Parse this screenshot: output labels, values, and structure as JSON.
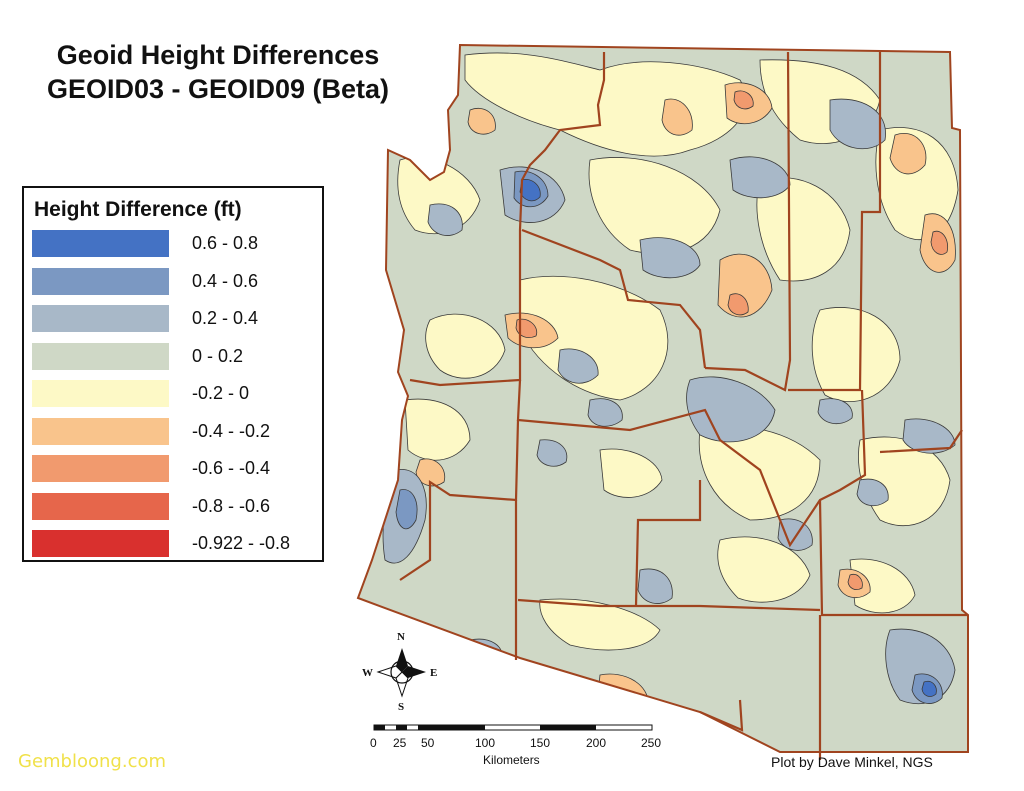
{
  "map": {
    "title_line1": "Geoid Height Differences",
    "title_line2": "GEOID03 - GEOID09 (Beta)",
    "legend": {
      "title": "Height Difference (ft)",
      "classes": [
        {
          "label": "0.6 - 0.8",
          "color": "#4472c4"
        },
        {
          "label": "0.4 - 0.6",
          "color": "#7b98c2"
        },
        {
          "label": "0.2 - 0.4",
          "color": "#a8b8c8"
        },
        {
          "label": "0 - 0.2",
          "color": "#cfd8c6"
        },
        {
          "label": "-0.2 - 0",
          "color": "#fdf9c6"
        },
        {
          "label": "-0.4 - -0.2",
          "color": "#f9c48c"
        },
        {
          "label": "-0.6 - -0.4",
          "color": "#f19a6e"
        },
        {
          "label": "-0.8 - -0.6",
          "color": "#e6664b"
        },
        {
          "label": "-0.922 - -0.8",
          "color": "#d9302e"
        }
      ]
    },
    "north_arrow": {
      "n": "N",
      "s": "S",
      "e": "E",
      "w": "W"
    },
    "scale_bar": {
      "ticks": [
        "0",
        "25",
        "50",
        "100",
        "150",
        "200",
        "250"
      ],
      "units": "Kilometers"
    },
    "credit": "Plot by Dave Minkel, NGS",
    "watermark": "Gembloong.com",
    "colors": {
      "county_boundary": "#a0441f",
      "contour_line": "#3a3a3a"
    }
  }
}
